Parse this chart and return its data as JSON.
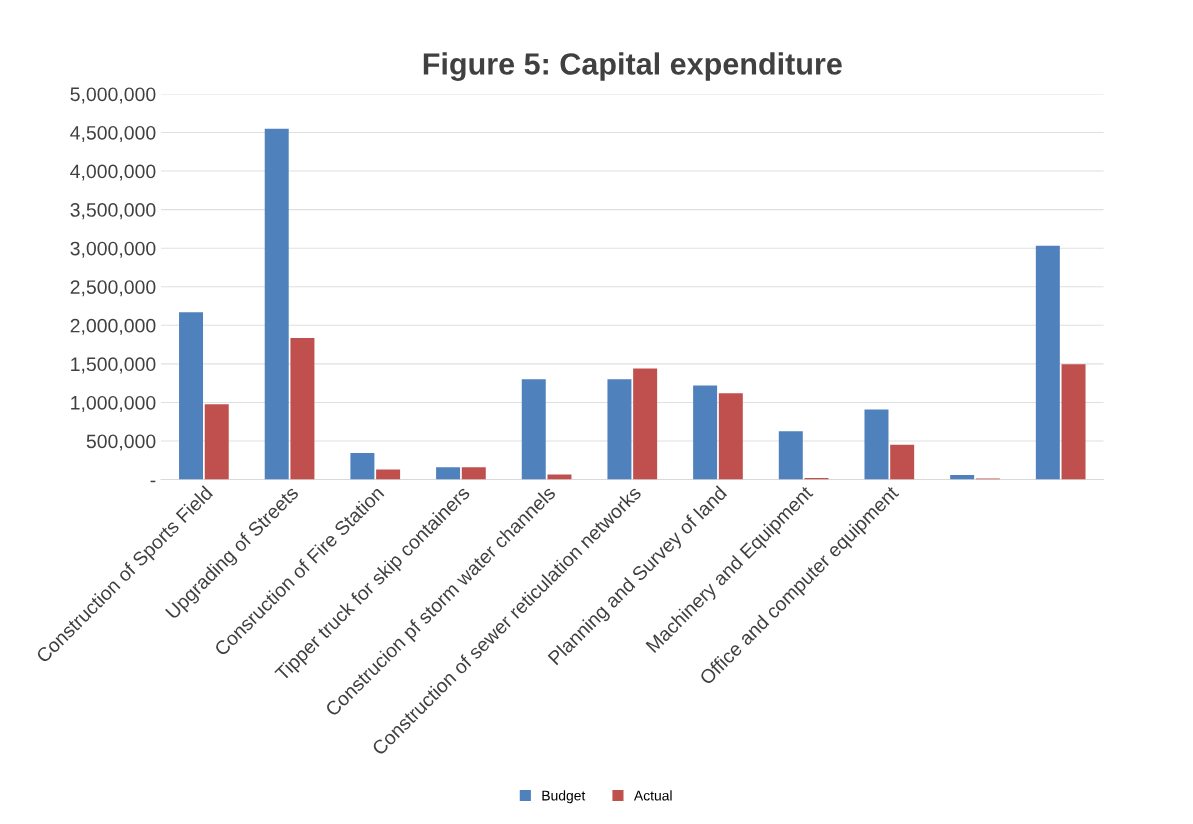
{
  "chart_data": {
    "type": "bar",
    "title": "Figure 5: Capital expenditure",
    "categories": [
      "Construction of Sports Field",
      "Upgrading of Streets",
      "Consruction of Fire Station",
      "Tipper truck for skip containers",
      "Construcion pf storm water channels",
      "Construction of sewer reticulation networks",
      "Planning and Survey of land",
      "Machinery and Equipment",
      "Office and computer equipment",
      null,
      null
    ],
    "series": [
      {
        "name": "Budget",
        "color": "#4f81bd",
        "values": [
          2170000,
          4550000,
          345000,
          160000,
          1300000,
          1300000,
          1220000,
          625000,
          910000,
          60000,
          3030000
        ]
      },
      {
        "name": "Actual",
        "color": "#c0504d",
        "values": [
          975000,
          1835000,
          130000,
          160000,
          65000,
          1440000,
          1120000,
          20000,
          450000,
          15000,
          1495000
        ]
      }
    ],
    "ylim": [
      0,
      5000000
    ],
    "yticks": [
      {
        "value": 0,
        "label": "-"
      },
      {
        "value": 500000,
        "label": "500,000"
      },
      {
        "value": 1000000,
        "label": "1,000,000"
      },
      {
        "value": 1500000,
        "label": "1,500,000"
      },
      {
        "value": 2000000,
        "label": "2,000,000"
      },
      {
        "value": 2500000,
        "label": "2,500,000"
      },
      {
        "value": 3000000,
        "label": "3,000,000"
      },
      {
        "value": 3500000,
        "label": "3,500,000"
      },
      {
        "value": 4000000,
        "label": "4,000,000"
      },
      {
        "value": 4500000,
        "label": "4,500,000"
      },
      {
        "value": 5000000,
        "label": "5,000,000"
      }
    ],
    "grid": "y",
    "legend": "bottom"
  }
}
